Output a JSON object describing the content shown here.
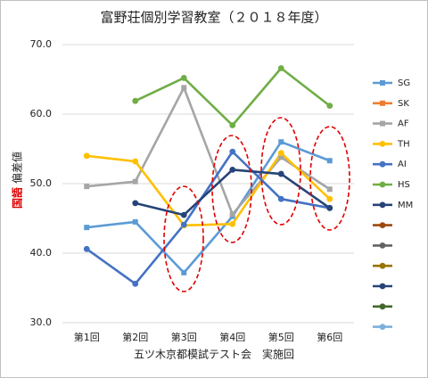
{
  "chart_data": {
    "type": "line",
    "title": "富野荘個別学習教室（２０１８年度）",
    "ylabel": {
      "subject": "国語",
      "measure": "偏差値"
    },
    "ylabel_colors": {
      "subject": "#e00000",
      "measure": "#222222"
    },
    "xlabel": "五ツ木京都模試テスト会　実施回",
    "categories": [
      "第1回",
      "第2回",
      "第3回",
      "第4回",
      "第5回",
      "第6回"
    ],
    "ylim": [
      30,
      70
    ],
    "yticks": [
      {
        "value": 30,
        "label": "30.0"
      },
      {
        "value": 40,
        "label": "40.0"
      },
      {
        "value": 50,
        "label": "50.0"
      },
      {
        "value": 60,
        "label": "60.0"
      },
      {
        "value": 70,
        "label": "70.0"
      }
    ],
    "grid": true,
    "legend": "right",
    "series": [
      {
        "name": "SG",
        "color": "#5b9bd5",
        "marker": "square",
        "values": [
          43.7,
          44.5,
          37.2,
          45.3,
          56.0,
          53.3
        ]
      },
      {
        "name": "SK",
        "color": "#ed7d31",
        "marker": "square",
        "values": [
          null,
          null,
          null,
          null,
          null,
          null
        ]
      },
      {
        "name": "AF",
        "color": "#a5a5a5",
        "marker": "square",
        "values": [
          49.6,
          50.3,
          63.8,
          45.6,
          53.8,
          49.2
        ]
      },
      {
        "name": "TH",
        "color": "#ffc000",
        "marker": "circle",
        "values": [
          54.0,
          53.2,
          44.0,
          44.2,
          54.4,
          47.8
        ]
      },
      {
        "name": "AI",
        "color": "#4472c4",
        "marker": "circle",
        "values": [
          40.6,
          35.6,
          44.1,
          54.6,
          47.8,
          46.5
        ]
      },
      {
        "name": "HS",
        "color": "#70ad47",
        "marker": "circle",
        "values": [
          null,
          61.9,
          65.2,
          58.4,
          66.6,
          61.2
        ]
      },
      {
        "name": "MM",
        "color": "#264478",
        "marker": "circle",
        "values": [
          null,
          47.2,
          45.5,
          52.0,
          51.4,
          46.5
        ]
      },
      {
        "color": "#9e480e",
        "marker": "circle",
        "values": [
          null,
          null,
          null,
          null,
          null,
          null
        ]
      },
      {
        "color": "#636363",
        "marker": "circle",
        "values": [
          null,
          null,
          null,
          null,
          null,
          null
        ]
      },
      {
        "color": "#997300",
        "marker": "circle",
        "values": [
          null,
          null,
          null,
          null,
          null,
          null
        ]
      },
      {
        "color": "#264478",
        "marker": "circle",
        "values": [
          null,
          null,
          null,
          null,
          null,
          null
        ]
      },
      {
        "color": "#43682b",
        "marker": "circle",
        "values": [
          null,
          null,
          null,
          null,
          null,
          null
        ]
      },
      {
        "color": "#7cafdd",
        "marker": "circle",
        "values": [
          null,
          null,
          null,
          null,
          null,
          null
        ]
      }
    ]
  }
}
